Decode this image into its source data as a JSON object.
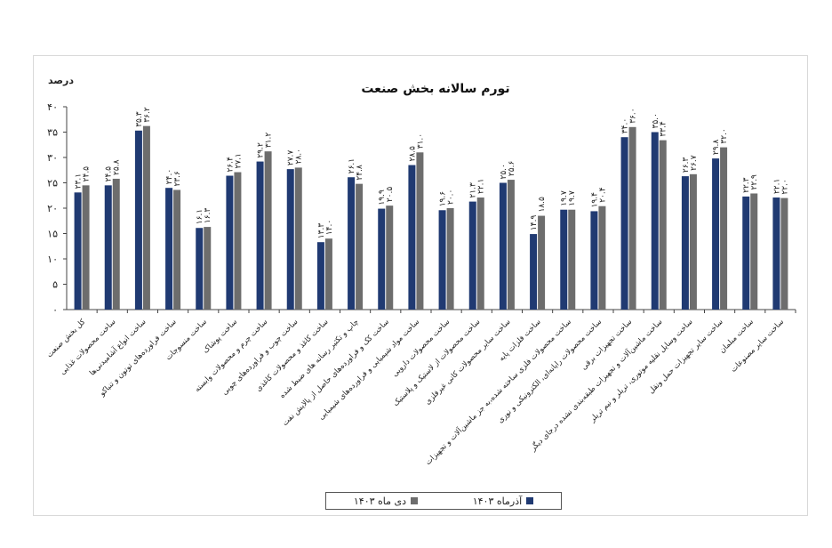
{
  "chart_data": {
    "type": "bar",
    "title": "تورم سالانه بخش صنعت",
    "ylabel": "درصد",
    "ylim": [
      0,
      40
    ],
    "yticks": [
      "۰",
      "۵",
      "۱۰",
      "۱۵",
      "۲۰",
      "۲۵",
      "۳۰",
      "۳۵",
      "۴۰"
    ],
    "categories": [
      "کل بخش صنعت",
      "ساخت محصولات غذایی",
      "ساخت انواع آشامیدنی‌ها",
      "ساخت فراورده‌های توتون و تنباکو",
      "ساخت منسوجات",
      "ساخت پوشاک",
      "ساخت چرم و محصولات وابسته",
      "ساخت چوب و فراورده‌های چوبی",
      "ساخت کاغذ و محصولات کاغذی",
      "چاپ و تکثیر رسانه های ضبط شده",
      "ساخت کک و فراورده‌های حاصل از پالایش نفت",
      "ساخت مواد شیمیایی و فراورده‌های شیمیایی",
      "ساخت محصولات دارویی",
      "ساخت محصولات از لاستیک و پلاستیک",
      "ساخت سایر محصولات کانی غیرفلزی",
      "ساخت فلزات پایه",
      "ساخت محصولات فلزی ساخته شده،به جز ماشین‌آلات و تجهیزات",
      "ساخت محصولات رایانه‌ای، الکترونیکی و نوری",
      "ساخت تجهیزات برقی",
      "ساخت ماشین‌آلات و تجهیزات طبقه‌بندی نشده درجای دیگر",
      "ساخت وسایل نقلیه موتوری، تریلر و نیم تریلر",
      "ساخت سایر تجهیزات حمل ونقل",
      "ساخت مبلمان",
      "ساخت سایر مصنوعات"
    ],
    "series": [
      {
        "name": "آذرماه ۱۴۰۳",
        "color": "#203a72",
        "values": [
          23.1,
          24.5,
          35.3,
          24.0,
          16.1,
          26.4,
          29.2,
          27.7,
          13.3,
          26.1,
          19.9,
          28.5,
          19.6,
          21.3,
          25.0,
          14.9,
          19.7,
          19.4,
          34.0,
          35.0,
          26.3,
          29.8,
          22.3,
          22.1
        ],
        "labels": [
          "۲۳.۱",
          "۲۴.۵",
          "۳۵.۳",
          "۲۴.۰",
          "۱۶.۱",
          "۲۶.۴",
          "۲۹.۲",
          "۲۷.۷",
          "۱۳.۳",
          "۲۶.۱",
          "۱۹.۹",
          "۲۸.۵",
          "۱۹.۶",
          "۲۱.۳",
          "۲۵.۰",
          "۱۴.۹",
          "۱۹.۷",
          "۱۹.۴",
          "۳۴.۰",
          "۳۵.۰",
          "۲۶.۳",
          "۲۹.۸",
          "۲۲.۳",
          "۲۲.۱"
        ]
      },
      {
        "name": "دی ماه ۱۴۰۳",
        "color": "#6d6d6d",
        "values": [
          24.5,
          25.8,
          36.2,
          23.6,
          16.3,
          27.1,
          31.2,
          28.0,
          14.0,
          24.8,
          20.5,
          31.0,
          20.0,
          22.1,
          25.6,
          18.5,
          19.7,
          20.4,
          36.0,
          33.4,
          26.7,
          32.0,
          22.9,
          22.0
        ],
        "labels": [
          "۲۴.۵",
          "۲۵.۸",
          "۳۶.۲",
          "۲۳.۶",
          "۱۶.۳",
          "۲۷.۱",
          "۳۱.۲",
          "۲۸.۰",
          "۱۴.۰",
          "۲۴.۸",
          "۲۰.۵",
          "۳۱.۰",
          "۲۰.۰",
          "۲۲.۱",
          "۲۵.۶",
          "۱۸.۵",
          "۱۹.۷",
          "۲۰.۴",
          "۳۶.۰",
          "۳۳.۴",
          "۲۶.۷",
          "۳۲.۰",
          "۲۲.۹",
          "۲۲.۰"
        ]
      }
    ],
    "legend": "bottom",
    "grid": false
  }
}
